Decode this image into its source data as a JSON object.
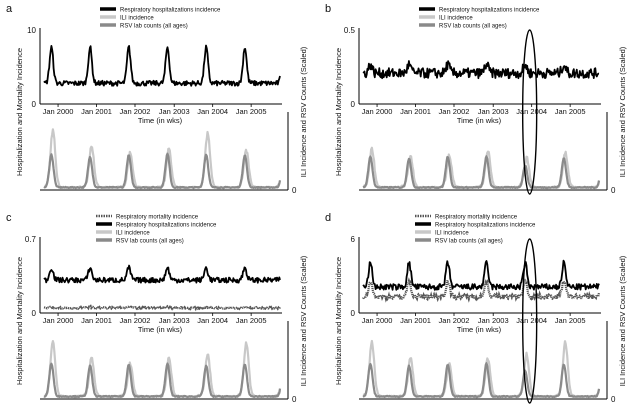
{
  "chart_data": [
    {
      "panel_letter": "a",
      "type": "line",
      "legend": [
        "Respiratory hospitalizations incidence",
        "ILI incidence",
        "RSV lab counts (all ages)"
      ],
      "ylabel_left": "Hospitalization and Mortality Incidence",
      "ylabel_right": "ILI Incidence and RSV Counts (Scaled)",
      "xlabel": "Time (in wks)",
      "x_ticks": [
        "Jan 2000",
        "Jan 2001",
        "Jan 2002",
        "Jan 2003",
        "Jan 2004",
        "Jan 2005"
      ],
      "y_top_ticks": [
        "0",
        "10"
      ],
      "y_right_ticks": [
        "0",
        "1"
      ],
      "ylim_top": [
        0,
        10
      ],
      "ylim_bottom": [
        0,
        1
      ],
      "highlight": false,
      "series_top": [
        {
          "role": "hosp",
          "color": "#000000",
          "base": 2.6,
          "peak": 5.0,
          "noise": 0.35
        }
      ],
      "series_bottom": [
        {
          "role": "ili",
          "color": "#c8c8c8",
          "peaks": [
            0.75,
            0.55,
            0.45,
            0.5,
            0.72,
            0.48
          ]
        },
        {
          "role": "rsv",
          "color": "#8a8a8a",
          "peaks": [
            0.45,
            0.42,
            0.44,
            0.46,
            0.45,
            0.44
          ]
        }
      ]
    },
    {
      "panel_letter": "b",
      "type": "line",
      "legend": [
        "Respiratory hospitalizations incidence",
        "ILI incidence",
        "RSV lab counts (all ages)"
      ],
      "ylabel_left": "Hospitalization and Mortality Incidence",
      "ylabel_right": "ILI Incidence and RSV Counts (Scaled)",
      "xlabel": "Time (in wks)",
      "x_ticks": [
        "Jan 2000",
        "Jan 2001",
        "Jan 2002",
        "Jan 2003",
        "Jan 2004",
        "Jan 2005"
      ],
      "y_top_ticks": [
        "0",
        "0.5"
      ],
      "y_right_ticks": [
        "0",
        "1"
      ],
      "ylim_top": [
        0,
        0.5
      ],
      "ylim_bottom": [
        0,
        1
      ],
      "highlight": true,
      "series_top": [
        {
          "role": "hosp",
          "color": "#000000",
          "base": 0.2,
          "peak": 0.06,
          "noise": 0.035
        }
      ],
      "series_bottom": [
        {
          "role": "ili",
          "color": "#c8c8c8",
          "peaks": [
            0.5,
            0.4,
            0.42,
            0.48,
            0.38,
            0.45
          ]
        },
        {
          "role": "rsv",
          "color": "#8a8a8a",
          "peaks": [
            0.42,
            0.4,
            0.42,
            0.42,
            0.3,
            0.4
          ]
        }
      ]
    },
    {
      "panel_letter": "c",
      "type": "line",
      "legend": [
        "Respiratory mortality incidence",
        "Respiratory hospitalizations incidence",
        "ILI incidence",
        "RSV lab counts (all ages)"
      ],
      "ylabel_left": "Hospitalization and Mortality Incidence",
      "ylabel_right": "ILI Incidence and RSV Counts (Scaled)",
      "xlabel": "Time (in wks)",
      "x_ticks": [
        "Jan 2000",
        "Jan 2001",
        "Jan 2002",
        "Jan 2003",
        "Jan 2004",
        "Jan 2005"
      ],
      "y_top_ticks": [
        "0",
        "0.7"
      ],
      "y_right_ticks": [
        "0",
        "1"
      ],
      "ylim_top": [
        0,
        0.7
      ],
      "ylim_bottom": [
        0,
        1
      ],
      "highlight": false,
      "series_top": [
        {
          "role": "hosp",
          "color": "#000000",
          "base": 0.3,
          "peak": 0.12,
          "noise": 0.025
        },
        {
          "role": "mort",
          "color": "#555555",
          "base": 0.03,
          "peak": 0.01,
          "noise": 0.008
        }
      ],
      "series_bottom": [
        {
          "role": "ili",
          "color": "#c8c8c8",
          "peaks": [
            0.72,
            0.5,
            0.42,
            0.5,
            0.55,
            0.7
          ]
        },
        {
          "role": "rsv",
          "color": "#8a8a8a",
          "peaks": [
            0.45,
            0.42,
            0.44,
            0.45,
            0.42,
            0.44
          ]
        }
      ]
    },
    {
      "panel_letter": "d",
      "type": "line",
      "legend": [
        "Respiratory mortality incidence",
        "Respiratory hospitalizations incidence",
        "ILI incidence",
        "RSV lab counts (all ages)"
      ],
      "ylabel_left": "Hospitalization and Mortality Incidence",
      "ylabel_right": "ILI Incidence and RSV Counts (Scaled)",
      "xlabel": "Time (in wks)",
      "x_ticks": [
        "Jan 2000",
        "Jan 2001",
        "Jan 2002",
        "Jan 2003",
        "Jan 2004",
        "Jan 2005"
      ],
      "y_top_ticks": [
        "0",
        "6"
      ],
      "y_right_ticks": [
        "0",
        "1"
      ],
      "ylim_top": [
        0,
        6
      ],
      "ylim_bottom": [
        0,
        1
      ],
      "highlight": true,
      "series_top": [
        {
          "role": "hosp",
          "color": "#000000",
          "base": 2.0,
          "peak": 2.0,
          "noise": 0.25
        },
        {
          "role": "mort",
          "color": "#555555",
          "base": 1.2,
          "peak": 1.3,
          "noise": 0.2
        }
      ],
      "series_bottom": [
        {
          "role": "ili",
          "color": "#c8c8c8",
          "peaks": [
            0.72,
            0.5,
            0.42,
            0.5,
            0.55,
            0.72
          ]
        },
        {
          "role": "rsv",
          "color": "#8a8a8a",
          "peaks": [
            0.45,
            0.42,
            0.44,
            0.45,
            0.35,
            0.44
          ]
        }
      ]
    }
  ]
}
